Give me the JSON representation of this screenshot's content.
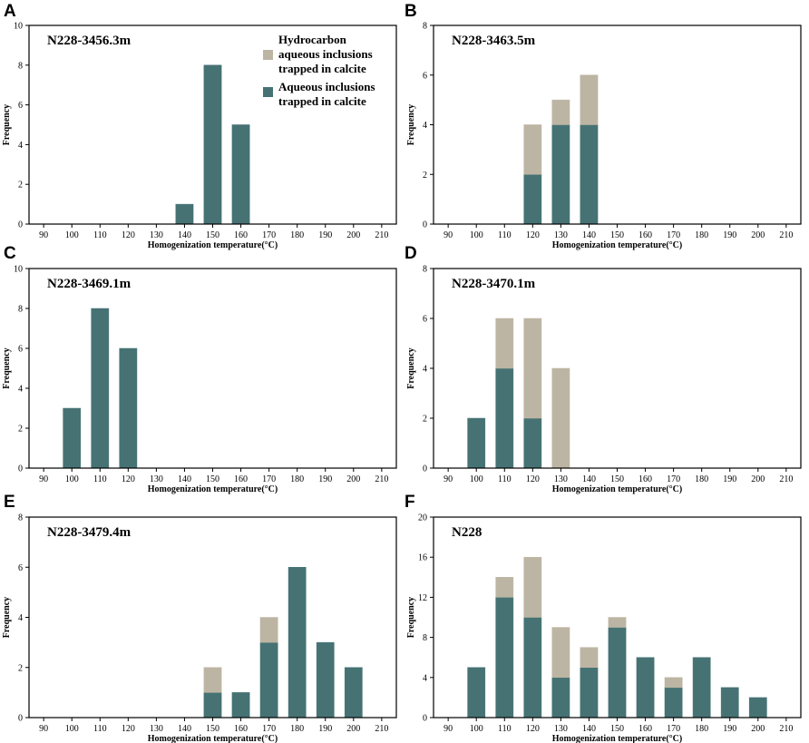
{
  "colors": {
    "aqueous": "#467274",
    "hydrocarbon": "#bdb5a3",
    "axis": "#000000"
  },
  "legend": {
    "hydrocarbon_label_lines": [
      "Hydrocarbon",
      "aqueous inclusions",
      "trapped in calcite"
    ],
    "aqueous_label_lines": [
      "Aqueous inclusions",
      "trapped in calcite"
    ]
  },
  "chart_data": [
    {
      "type": "bar",
      "stacked": true,
      "panel": "A",
      "title": "N228-3456.3m",
      "xlabel": "Homogenization temperature(°C)",
      "ylabel": "Frequency",
      "categories": [
        90,
        100,
        110,
        120,
        130,
        140,
        150,
        160,
        170,
        180,
        190,
        200,
        210
      ],
      "yticks": [
        0,
        2,
        4,
        6,
        8,
        10
      ],
      "ylim": [
        0,
        10
      ],
      "series": [
        {
          "name": "Aqueous inclusions trapped in calcite",
          "values": [
            0,
            0,
            0,
            0,
            0,
            1,
            8,
            5,
            0,
            0,
            0,
            0,
            0
          ]
        },
        {
          "name": "Hydrocarbon aqueous inclusions trapped in calcite",
          "values": [
            0,
            0,
            0,
            0,
            0,
            0,
            0,
            0,
            0,
            0,
            0,
            0,
            0
          ]
        }
      ]
    },
    {
      "type": "bar",
      "stacked": true,
      "panel": "B",
      "title": "N228-3463.5m",
      "xlabel": "Homogenization temperature(°C)",
      "ylabel": "Frequency",
      "categories": [
        90,
        100,
        110,
        120,
        130,
        140,
        150,
        160,
        170,
        180,
        190,
        200,
        210
      ],
      "yticks": [
        0,
        2,
        4,
        6,
        8
      ],
      "ylim": [
        0,
        8
      ],
      "series": [
        {
          "name": "Aqueous inclusions trapped in calcite",
          "values": [
            0,
            0,
            0,
            2,
            4,
            4,
            0,
            0,
            0,
            0,
            0,
            0,
            0
          ]
        },
        {
          "name": "Hydrocarbon aqueous inclusions trapped in calcite",
          "values": [
            0,
            0,
            0,
            2,
            1,
            2,
            0,
            0,
            0,
            0,
            0,
            0,
            0
          ]
        }
      ]
    },
    {
      "type": "bar",
      "stacked": true,
      "panel": "C",
      "title": "N228-3469.1m",
      "xlabel": "Homogenization temperature(°C)",
      "ylabel": "Frequency",
      "categories": [
        90,
        100,
        110,
        120,
        130,
        140,
        150,
        160,
        170,
        180,
        190,
        200,
        210
      ],
      "yticks": [
        0,
        2,
        4,
        6,
        8,
        10
      ],
      "ylim": [
        0,
        10
      ],
      "series": [
        {
          "name": "Aqueous inclusions trapped in calcite",
          "values": [
            0,
            3,
            8,
            6,
            0,
            0,
            0,
            0,
            0,
            0,
            0,
            0,
            0
          ]
        },
        {
          "name": "Hydrocarbon aqueous inclusions trapped in calcite",
          "values": [
            0,
            0,
            0,
            0,
            0,
            0,
            0,
            0,
            0,
            0,
            0,
            0,
            0
          ]
        }
      ]
    },
    {
      "type": "bar",
      "stacked": true,
      "panel": "D",
      "title": "N228-3470.1m",
      "xlabel": "Homogenization temperature(°C)",
      "ylabel": "Frequency",
      "categories": [
        90,
        100,
        110,
        120,
        130,
        140,
        150,
        160,
        170,
        180,
        190,
        200,
        210
      ],
      "yticks": [
        0,
        2,
        4,
        6,
        8
      ],
      "ylim": [
        0,
        8
      ],
      "series": [
        {
          "name": "Aqueous inclusions trapped in calcite",
          "values": [
            0,
            2,
            4,
            2,
            0,
            0,
            0,
            0,
            0,
            0,
            0,
            0,
            0
          ]
        },
        {
          "name": "Hydrocarbon aqueous inclusions trapped in calcite",
          "values": [
            0,
            0,
            2,
            4,
            4,
            0,
            0,
            0,
            0,
            0,
            0,
            0,
            0
          ]
        }
      ]
    },
    {
      "type": "bar",
      "stacked": true,
      "panel": "E",
      "title": "N228-3479.4m",
      "xlabel": "Homogenization temperature(°C)",
      "ylabel": "Frequency",
      "categories": [
        90,
        100,
        110,
        120,
        130,
        140,
        150,
        160,
        170,
        180,
        190,
        200,
        210
      ],
      "yticks": [
        0,
        2,
        4,
        6,
        8
      ],
      "ylim": [
        0,
        8
      ],
      "series": [
        {
          "name": "Aqueous inclusions trapped in calcite",
          "values": [
            0,
            0,
            0,
            0,
            0,
            0,
            1,
            1,
            3,
            6,
            3,
            2,
            0
          ]
        },
        {
          "name": "Hydrocarbon aqueous inclusions trapped in calcite",
          "values": [
            0,
            0,
            0,
            0,
            0,
            0,
            1,
            0,
            1,
            0,
            0,
            0,
            0
          ]
        }
      ]
    },
    {
      "type": "bar",
      "stacked": true,
      "panel": "F",
      "title": "N228",
      "xlabel": "Homogenization temperature(°C)",
      "ylabel": "Frequency",
      "categories": [
        90,
        100,
        110,
        120,
        130,
        140,
        150,
        160,
        170,
        180,
        190,
        200,
        210
      ],
      "yticks": [
        0,
        4,
        8,
        12,
        16,
        20
      ],
      "ylim": [
        0,
        20
      ],
      "series": [
        {
          "name": "Aqueous inclusions trapped in calcite",
          "values": [
            0,
            5,
            12,
            10,
            4,
            5,
            9,
            6,
            3,
            6,
            3,
            2,
            0
          ]
        },
        {
          "name": "Hydrocarbon aqueous inclusions trapped in calcite",
          "values": [
            0,
            0,
            2,
            6,
            5,
            2,
            1,
            0,
            1,
            0,
            0,
            0,
            0
          ]
        }
      ]
    }
  ]
}
